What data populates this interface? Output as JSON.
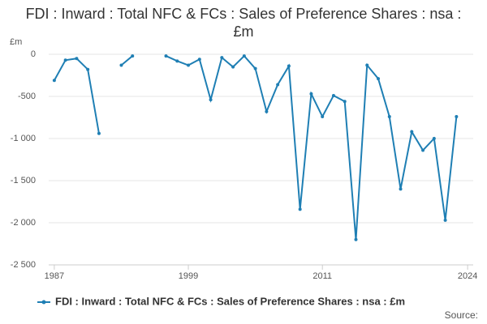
{
  "chart_data": {
    "type": "line",
    "title": "FDI : Inward : Total NFC & FCs : Sales of Preference Shares : nsa : £m",
    "y_label": "£m",
    "source": "Source:",
    "x": [
      1987,
      1988,
      1989,
      1990,
      1991,
      1992,
      1993,
      1994,
      1995,
      1996,
      1997,
      1998,
      1999,
      2000,
      2001,
      2002,
      2003,
      2004,
      2005,
      2006,
      2007,
      2008,
      2009,
      2010,
      2011,
      2012,
      2013,
      2014,
      2015,
      2016,
      2017,
      2018,
      2019,
      2020,
      2021,
      2022,
      2023
    ],
    "series": [
      {
        "name": "FDI : Inward : Total NFC & FCs : Sales of Preference Shares : nsa : £m",
        "color": "#1f7fb4",
        "values": [
          -310,
          -70,
          -50,
          -180,
          -940,
          null,
          -130,
          -20,
          null,
          null,
          -20,
          -80,
          -130,
          -60,
          -540,
          -40,
          -150,
          -20,
          -170,
          -680,
          -360,
          -140,
          -1840,
          -470,
          -740,
          -490,
          -560,
          -2200,
          -130,
          -290,
          -740,
          -1600,
          -920,
          -1140,
          -1000,
          -1970,
          -740
        ]
      }
    ],
    "xlim": [
      1986.5,
      2024.5
    ],
    "xticks": [
      1987,
      1999,
      2011,
      2024
    ],
    "ylim": [
      -2500,
      0
    ],
    "yticks": [
      {
        "value": -2500,
        "label": "-2 500"
      },
      {
        "value": -2000,
        "label": "-2 000"
      },
      {
        "value": -1500,
        "label": "-1 500"
      },
      {
        "value": -1000,
        "label": "-1 000"
      },
      {
        "value": -500,
        "label": "-500"
      },
      0
    ],
    "grid": true
  }
}
